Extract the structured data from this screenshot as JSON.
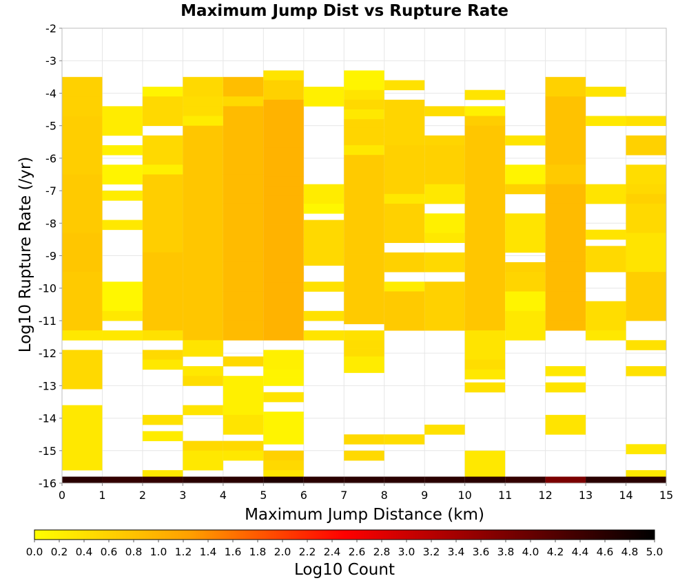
{
  "chart_data": {
    "type": "heatmap",
    "title": "Maximum Jump Dist vs Rupture Rate",
    "xlabel": "Maximum Jump Distance (km)",
    "ylabel": "Log10 Rupture Rate (/yr)",
    "xlim": [
      0,
      15
    ],
    "ylim": [
      -16,
      -2
    ],
    "x_ticks": [
      "0",
      "1",
      "2",
      "3",
      "4",
      "5",
      "6",
      "7",
      "8",
      "9",
      "10",
      "11",
      "12",
      "13",
      "14",
      "15"
    ],
    "y_ticks": [
      "-2",
      "-3",
      "-4",
      "-5",
      "-6",
      "-7",
      "-8",
      "-9",
      "-10",
      "-11",
      "-12",
      "-13",
      "-14",
      "-15",
      "-16"
    ],
    "bin_width_x": 1,
    "bin_height_y": 0.3,
    "colorbar": {
      "label": "Log10 Count",
      "range": [
        0,
        5
      ],
      "ticks": [
        "0.0",
        "0.2",
        "0.4",
        "0.6",
        "0.8",
        "1.0",
        "1.2",
        "1.4",
        "1.6",
        "1.8",
        "2.0",
        "2.2",
        "2.4",
        "2.6",
        "2.8",
        "3.0",
        "3.2",
        "3.4",
        "3.6",
        "3.8",
        "4.0",
        "4.2",
        "4.4",
        "4.6",
        "4.8",
        "5.0"
      ],
      "colors": [
        "#ffff00",
        "#ffa000",
        "#ff0000",
        "#800000",
        "#000000"
      ]
    },
    "columns": [
      {
        "x0": 0,
        "runs": [
          [
            -3.5,
            -4.7,
            0.6
          ],
          [
            -4.7,
            -6.5,
            0.65
          ],
          [
            -6.5,
            -8.3,
            0.7
          ],
          [
            -8.3,
            -9.5,
            0.75
          ],
          [
            -9.5,
            -11.3,
            0.7
          ],
          [
            -11.3,
            -11.6,
            0.3
          ],
          [
            -11.9,
            -13.1,
            0.5
          ],
          [
            -13.6,
            -15.6,
            0.3
          ],
          [
            -15.8,
            -16.0,
            4.6
          ]
        ]
      },
      {
        "x0": 1,
        "runs": [
          [
            -4.4,
            -5.3,
            0.25
          ],
          [
            -5.6,
            -5.9,
            0.2
          ],
          [
            -6.2,
            -6.8,
            0.15
          ],
          [
            -7.0,
            -7.3,
            0.25
          ],
          [
            -7.9,
            -8.2,
            0.3
          ],
          [
            -9.8,
            -10.7,
            0.1
          ],
          [
            -10.7,
            -11.0,
            0.3
          ],
          [
            -11.3,
            -11.6,
            0.3
          ],
          [
            -15.8,
            -16.0,
            4.5
          ]
        ]
      },
      {
        "x0": 2,
        "runs": [
          [
            -3.8,
            -4.1,
            0.15
          ],
          [
            -4.1,
            -5.0,
            0.5
          ],
          [
            -5.3,
            -6.2,
            0.5
          ],
          [
            -6.2,
            -6.5,
            0.2
          ],
          [
            -6.5,
            -8.9,
            0.65
          ],
          [
            -8.9,
            -11.3,
            0.75
          ],
          [
            -11.3,
            -11.6,
            0.4
          ],
          [
            -11.9,
            -12.2,
            0.5
          ],
          [
            -12.2,
            -12.5,
            0.3
          ],
          [
            -13.9,
            -14.2,
            0.4
          ],
          [
            -14.4,
            -14.7,
            0.25
          ],
          [
            -15.6,
            -15.8,
            0.3
          ],
          [
            -15.8,
            -16.0,
            4.5
          ]
        ]
      },
      {
        "x0": 3,
        "runs": [
          [
            -3.5,
            -4.1,
            0.5
          ],
          [
            -4.1,
            -4.7,
            0.45
          ],
          [
            -4.7,
            -5.0,
            0.25
          ],
          [
            -5.0,
            -11.6,
            0.75
          ],
          [
            -11.6,
            -12.1,
            0.35
          ],
          [
            -12.4,
            -12.7,
            0.3
          ],
          [
            -12.7,
            -13.0,
            0.45
          ],
          [
            -13.6,
            -13.9,
            0.35
          ],
          [
            -14.7,
            -15.0,
            0.5
          ],
          [
            -15.0,
            -15.3,
            0.3
          ],
          [
            -15.3,
            -15.6,
            0.3
          ],
          [
            -15.8,
            -16.0,
            4.6
          ]
        ]
      },
      {
        "x0": 4,
        "runs": [
          [
            -3.5,
            -4.1,
            0.85
          ],
          [
            -4.1,
            -4.4,
            0.5
          ],
          [
            -4.4,
            -11.6,
            0.9
          ],
          [
            -12.1,
            -12.4,
            0.5
          ],
          [
            -12.7,
            -13.9,
            0.2
          ],
          [
            -13.9,
            -14.5,
            0.35
          ],
          [
            -14.7,
            -15.0,
            0.5
          ],
          [
            -15.0,
            -15.3,
            0.3
          ],
          [
            -15.8,
            -16.0,
            4.6
          ]
        ]
      },
      {
        "x0": 5,
        "runs": [
          [
            -3.3,
            -3.6,
            0.35
          ],
          [
            -3.6,
            -4.2,
            0.6
          ],
          [
            -4.2,
            -11.6,
            1.0
          ],
          [
            -11.9,
            -12.5,
            0.2
          ],
          [
            -12.5,
            -13.0,
            0.15
          ],
          [
            -13.2,
            -13.5,
            0.35
          ],
          [
            -13.8,
            -14.8,
            0.15
          ],
          [
            -15.0,
            -15.3,
            0.6
          ],
          [
            -15.3,
            -15.6,
            0.5
          ],
          [
            -15.6,
            -15.8,
            0.3
          ],
          [
            -15.8,
            -16.0,
            4.7
          ]
        ]
      },
      {
        "x0": 6,
        "runs": [
          [
            -3.8,
            -4.4,
            0.2
          ],
          [
            -6.8,
            -7.4,
            0.25
          ],
          [
            -7.4,
            -7.7,
            0.1
          ],
          [
            -7.9,
            -9.3,
            0.5
          ],
          [
            -9.8,
            -10.1,
            0.4
          ],
          [
            -10.7,
            -11.0,
            0.4
          ],
          [
            -11.3,
            -11.6,
            0.35
          ],
          [
            -15.8,
            -16.0,
            4.6
          ]
        ]
      },
      {
        "x0": 7,
        "runs": [
          [
            -3.3,
            -3.9,
            0.15
          ],
          [
            -3.9,
            -4.2,
            0.35
          ],
          [
            -4.2,
            -4.5,
            0.5
          ],
          [
            -4.5,
            -4.8,
            0.3
          ],
          [
            -4.8,
            -5.6,
            0.55
          ],
          [
            -5.6,
            -5.9,
            0.3
          ],
          [
            -5.9,
            -11.1,
            0.7
          ],
          [
            -11.3,
            -11.6,
            0.4
          ],
          [
            -11.6,
            -12.1,
            0.45
          ],
          [
            -12.1,
            -12.6,
            0.25
          ],
          [
            -14.5,
            -14.8,
            0.5
          ],
          [
            -15.0,
            -15.3,
            0.5
          ],
          [
            -15.8,
            -16.0,
            4.6
          ]
        ]
      },
      {
        "x0": 8,
        "runs": [
          [
            -3.6,
            -3.9,
            0.4
          ],
          [
            -4.2,
            -5.6,
            0.55
          ],
          [
            -5.6,
            -7.1,
            0.6
          ],
          [
            -7.1,
            -7.4,
            0.3
          ],
          [
            -7.4,
            -8.6,
            0.6
          ],
          [
            -8.9,
            -9.5,
            0.6
          ],
          [
            -9.8,
            -10.1,
            0.25
          ],
          [
            -10.1,
            -11.3,
            0.7
          ],
          [
            -14.5,
            -14.8,
            0.45
          ],
          [
            -15.8,
            -16.0,
            4.6
          ]
        ]
      },
      {
        "x0": 9,
        "runs": [
          [
            -4.4,
            -4.7,
            0.45
          ],
          [
            -5.3,
            -5.6,
            0.55
          ],
          [
            -5.6,
            -6.8,
            0.6
          ],
          [
            -6.8,
            -7.4,
            0.3
          ],
          [
            -7.7,
            -8.3,
            0.2
          ],
          [
            -8.3,
            -8.6,
            0.3
          ],
          [
            -8.9,
            -9.5,
            0.5
          ],
          [
            -9.8,
            -11.3,
            0.6
          ],
          [
            -14.2,
            -14.5,
            0.4
          ],
          [
            -15.8,
            -16.0,
            4.6
          ]
        ]
      },
      {
        "x0": 10,
        "runs": [
          [
            -3.9,
            -4.2,
            0.35
          ],
          [
            -4.4,
            -4.7,
            0.2
          ],
          [
            -4.7,
            -5.0,
            0.65
          ],
          [
            -5.0,
            -11.3,
            0.75
          ],
          [
            -11.3,
            -12.2,
            0.35
          ],
          [
            -12.2,
            -12.5,
            0.45
          ],
          [
            -12.5,
            -12.8,
            0.3
          ],
          [
            -12.9,
            -13.2,
            0.4
          ],
          [
            -15.0,
            -15.8,
            0.3
          ],
          [
            -15.8,
            -16.0,
            4.6
          ]
        ]
      },
      {
        "x0": 11,
        "runs": [
          [
            -5.3,
            -5.6,
            0.35
          ],
          [
            -6.2,
            -6.8,
            0.15
          ],
          [
            -6.8,
            -7.1,
            0.6
          ],
          [
            -7.7,
            -8.9,
            0.35
          ],
          [
            -9.2,
            -9.5,
            0.6
          ],
          [
            -9.5,
            -10.1,
            0.55
          ],
          [
            -10.1,
            -10.7,
            0.15
          ],
          [
            -10.7,
            -11.6,
            0.3
          ],
          [
            -15.8,
            -16.0,
            4.5
          ]
        ]
      },
      {
        "x0": 12,
        "runs": [
          [
            -3.5,
            -4.1,
            0.6
          ],
          [
            -4.1,
            -6.2,
            0.8
          ],
          [
            -6.2,
            -6.8,
            0.7
          ],
          [
            -6.8,
            -11.3,
            0.9
          ],
          [
            -12.4,
            -12.7,
            0.3
          ],
          [
            -12.9,
            -13.2,
            0.35
          ],
          [
            -13.9,
            -14.5,
            0.35
          ],
          [
            -15.8,
            -16.0,
            3.8
          ]
        ]
      },
      {
        "x0": 13,
        "runs": [
          [
            -3.8,
            -4.1,
            0.35
          ],
          [
            -4.7,
            -5.0,
            0.3
          ],
          [
            -6.8,
            -7.4,
            0.35
          ],
          [
            -8.2,
            -8.5,
            0.35
          ],
          [
            -8.7,
            -9.5,
            0.5
          ],
          [
            -10.4,
            -11.3,
            0.45
          ],
          [
            -11.3,
            -11.6,
            0.3
          ],
          [
            -15.8,
            -16.0,
            4.6
          ]
        ]
      },
      {
        "x0": 14,
        "runs": [
          [
            -4.7,
            -5.0,
            0.4
          ],
          [
            -5.3,
            -5.9,
            0.6
          ],
          [
            -6.2,
            -6.8,
            0.45
          ],
          [
            -6.8,
            -7.1,
            0.5
          ],
          [
            -7.1,
            -7.4,
            0.6
          ],
          [
            -7.4,
            -8.3,
            0.5
          ],
          [
            -8.3,
            -9.5,
            0.35
          ],
          [
            -9.5,
            -11.0,
            0.65
          ],
          [
            -11.6,
            -11.9,
            0.4
          ],
          [
            -12.4,
            -12.7,
            0.4
          ],
          [
            -14.8,
            -15.1,
            0.3
          ],
          [
            -15.6,
            -15.8,
            0.3
          ],
          [
            -15.8,
            -16.0,
            4.6
          ]
        ]
      }
    ]
  }
}
